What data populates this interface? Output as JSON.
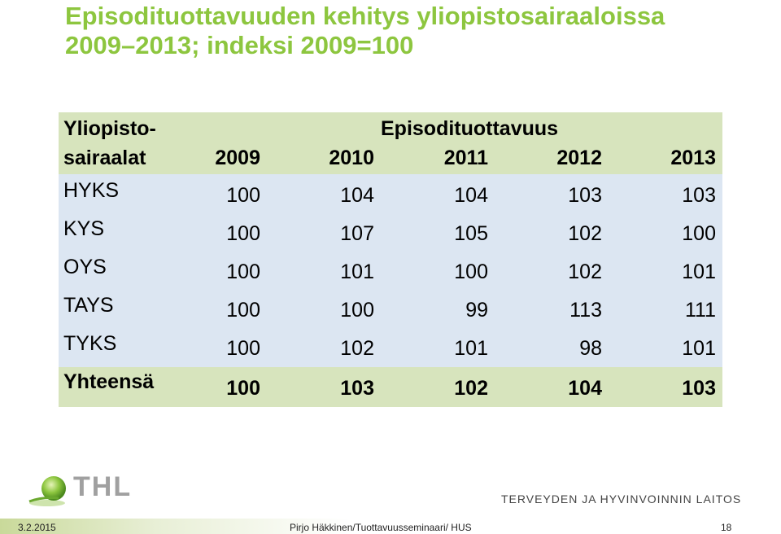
{
  "title_line1": "Episodituottavuuden kehitys yliopistosairaaloissa",
  "title_line2": "2009–2013; indeksi 2009=100",
  "table": {
    "row_header_line1": "Yliopisto-",
    "row_header_line2": "sairaalat",
    "group_header": "Episodituottavuus",
    "years": [
      "2009",
      "2010",
      "2011",
      "2012",
      "2013"
    ],
    "rows": [
      {
        "name": "HYKS",
        "values": [
          "100",
          "104",
          "104",
          "103",
          "103"
        ]
      },
      {
        "name": "KYS",
        "values": [
          "100",
          "107",
          "105",
          "102",
          "100"
        ]
      },
      {
        "name": "OYS",
        "values": [
          "100",
          "101",
          "100",
          "102",
          "101"
        ]
      },
      {
        "name": "TAYS",
        "values": [
          "100",
          "100",
          "99",
          "113",
          "111"
        ]
      },
      {
        "name": "TYKS",
        "values": [
          "100",
          "102",
          "101",
          "98",
          "101"
        ]
      }
    ],
    "total": {
      "name": "Yhteensä",
      "values": [
        "100",
        "103",
        "102",
        "104",
        "103"
      ]
    }
  },
  "logo": {
    "text": "THL",
    "icon": "thl-globe-logo-icon"
  },
  "institute": "TERVEYDEN JA HYVINVOINNIN LAITOS",
  "footer": {
    "date": "3.2.2015",
    "author": "Pirjo Häkkinen/Tuottavuusseminaari/ HUS",
    "page": "18"
  },
  "colors": {
    "title": "#8dc63f",
    "header_bg": "#d7e4bd",
    "body_bg": "#dce6f2"
  }
}
